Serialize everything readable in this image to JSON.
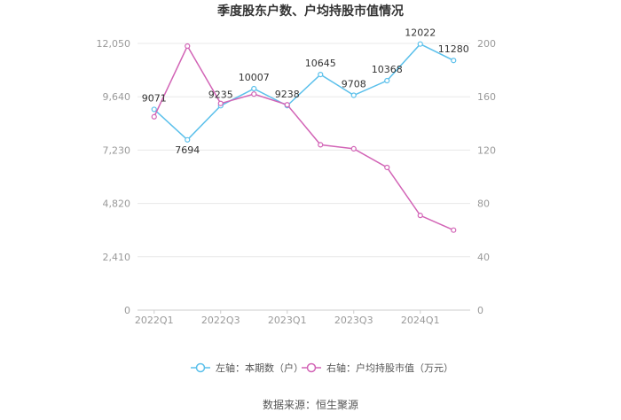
{
  "chart_data": {
    "type": "line",
    "title": "季度股东户数、户均持股市值情况",
    "categories": [
      "2022Q1",
      "2022Q2",
      "2022Q3",
      "2022Q4",
      "2023Q1",
      "2023Q2",
      "2023Q3",
      "2023Q4",
      "2024Q1",
      "2024Q2"
    ],
    "x_tick_labels": [
      "2022Q1",
      "2022Q3",
      "2023Q1",
      "2023Q3",
      "2024Q1"
    ],
    "left_axis": {
      "ticks": [
        "0",
        "2,410",
        "4,820",
        "7,230",
        "9,640",
        "12,050"
      ],
      "ylim": [
        0,
        12050
      ]
    },
    "right_axis": {
      "ticks": [
        "0",
        "40",
        "80",
        "120",
        "160",
        "200"
      ],
      "ylim": [
        0,
        200
      ]
    },
    "series": [
      {
        "name": "左轴：本期数（户）",
        "axis": "left",
        "color": "#5bc0eb",
        "values": [
          9071,
          7694,
          9235,
          10007,
          9238,
          10645,
          9708,
          10368,
          12022,
          11280
        ],
        "labels": [
          "9071",
          "7694",
          "9235",
          "10007",
          "9238",
          "10645",
          "9708",
          "10368",
          "12022",
          "11280"
        ]
      },
      {
        "name": "右轴：户均持股市值（万元）",
        "axis": "right",
        "color": "#d264b6",
        "values": [
          145,
          198,
          155,
          162,
          154,
          124,
          121,
          107,
          71,
          60
        ]
      }
    ],
    "grid": true,
    "legend_position": "bottom"
  },
  "source_text": "数据来源：恒生聚源"
}
